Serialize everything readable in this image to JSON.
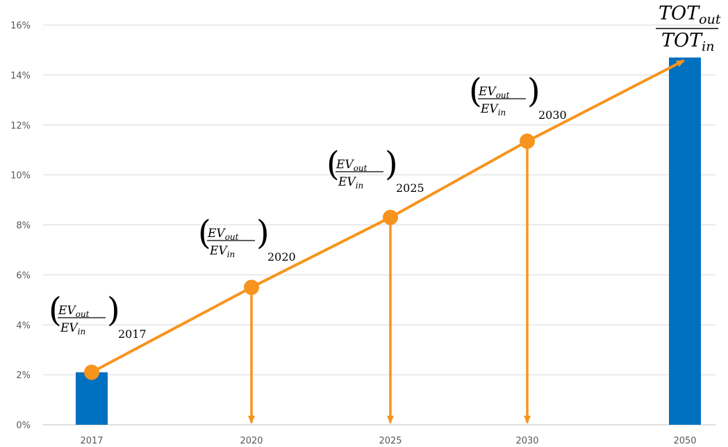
{
  "chart_data": {
    "type": "bar",
    "categories": [
      "2017",
      "2020",
      "2025",
      "2030",
      "2050"
    ],
    "bar_series": {
      "values": [
        2.1,
        null,
        null,
        null,
        14.7
      ],
      "color": "#0070C0"
    },
    "line_series": {
      "values": [
        2.1,
        5.5,
        8.3,
        11.35,
        14.6
      ],
      "color": "#F7941D"
    },
    "drop_arrows_at": [
      "2020",
      "2025",
      "2030"
    ],
    "ylim": [
      0,
      16
    ],
    "yticks": [
      0,
      2,
      4,
      6,
      8,
      10,
      12,
      14,
      16
    ],
    "ytick_labels": [
      "0%",
      "2%",
      "4%",
      "6%",
      "8%",
      "10%",
      "12%",
      "14%",
      "16%"
    ],
    "grid": true,
    "annotations": [
      {
        "category": "2017",
        "num_base": "EV",
        "num_sub": "out",
        "den_base": "EV",
        "den_sub": "in",
        "year_sub": "2017"
      },
      {
        "category": "2020",
        "num_base": "EV",
        "num_sub": "out",
        "den_base": "EV",
        "den_sub": "in",
        "year_sub": "2020"
      },
      {
        "category": "2025",
        "num_base": "EV",
        "num_sub": "out",
        "den_base": "EV",
        "den_sub": "in",
        "year_sub": "2025"
      },
      {
        "category": "2030",
        "num_base": "EV",
        "num_sub": "out",
        "den_base": "EV",
        "den_sub": "in",
        "year_sub": "2030"
      }
    ],
    "final_annotation": {
      "category": "2050",
      "num_base": "TOT",
      "num_sub": "out",
      "den_base": "TOT",
      "den_sub": "in"
    }
  }
}
